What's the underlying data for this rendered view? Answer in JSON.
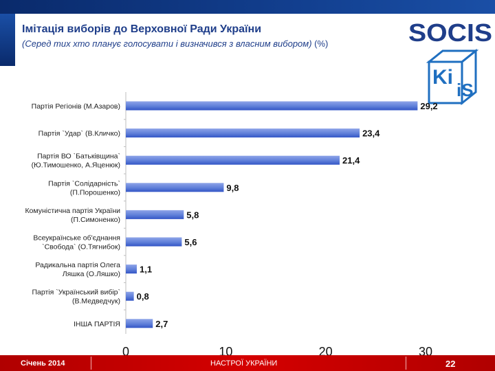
{
  "header": {
    "title": "Імітація виборів до Верховної Ради України",
    "subtitle_note": "(Серед тих хто планує голосувати і визначився з власним вибором)",
    "subtitle_unit": "(%)"
  },
  "logos": {
    "socis_text": "SOCIS",
    "kiis_text_top": "Ki",
    "kiis_text_bottom": "iS"
  },
  "colors": {
    "bar_light": "#7f97e0",
    "bar_dark": "#3355c6",
    "title": "#1f3e8a",
    "footer": "#c80000"
  },
  "chart_data": {
    "type": "bar",
    "orientation": "horizontal",
    "categories": [
      [
        "Партія Регіонів (М.Азаров)"
      ],
      [
        "Партія `Удар` (В.Кличко)"
      ],
      [
        "Партія ВО `Батьківщина`",
        "(Ю.Тимошенко, А.Яценюк)"
      ],
      [
        "Партія `Солідарність`",
        "(П.Порошенко)"
      ],
      [
        "Комуністична партія України",
        "(П.Симоненко)"
      ],
      [
        "Всеукраїнське об'єднання",
        "`Свобода` (О.Тягнибок)"
      ],
      [
        "Радикальна партія Олега",
        "Ляшка (О.Ляшко)"
      ],
      [
        "Партія `Український вибір`",
        "(В.Медведчук)"
      ],
      [
        "ІНША ПАРТІЯ"
      ]
    ],
    "values": [
      29.2,
      23.4,
      21.4,
      9.8,
      5.8,
      5.6,
      1.1,
      0.8,
      2.7
    ],
    "labels": [
      "29,2",
      "23,4",
      "21,4",
      "9,8",
      "5,8",
      "5,6",
      "1,1",
      "0,8",
      "2,7"
    ],
    "xlim": [
      0,
      30
    ],
    "xticks": [
      0,
      10,
      20,
      30
    ],
    "grid": false,
    "legend": "none"
  },
  "footer": {
    "date": "Січень 2014",
    "center": "НАСТРОЇ УКРАЇНИ",
    "page": "22"
  }
}
